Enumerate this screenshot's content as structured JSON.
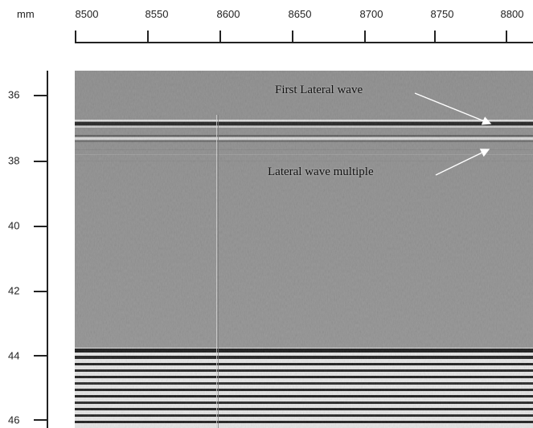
{
  "axis": {
    "unit": "mm",
    "x_ticks": [
      "8500",
      "8550",
      "8600",
      "8650",
      "8700",
      "8750",
      "8800"
    ],
    "y_ticks": [
      "36",
      "38",
      "40",
      "42",
      "44",
      "46"
    ]
  },
  "annotations": {
    "first_lateral_wave": "First Lateral wave",
    "lateral_wave_multiple": "Lateral wave multiple"
  },
  "colors": {
    "background_gray": "#8f8f8f",
    "annotation_arrow": "#ffffff"
  }
}
